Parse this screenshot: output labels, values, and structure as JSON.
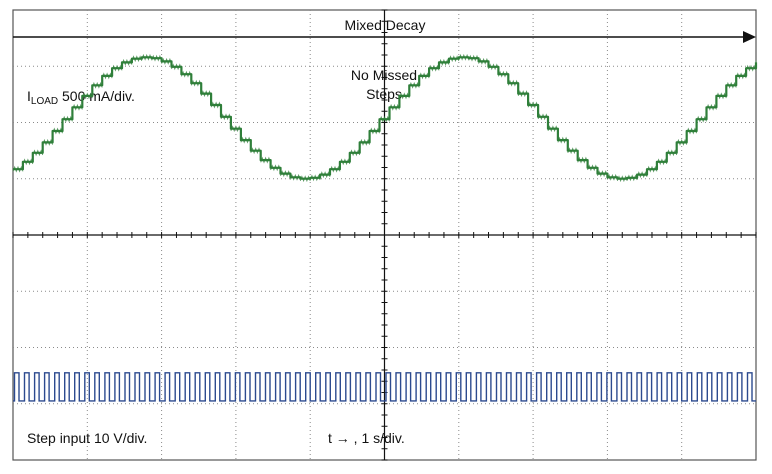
{
  "chart_data": {
    "type": "line",
    "title": "Mixed Decay",
    "annotation": "No Missed Steps",
    "annotation_lines": [
      "No Missed",
      "Steps"
    ],
    "grid": true,
    "grid_divisions": {
      "x": 10,
      "y": 8
    },
    "colors": {
      "current_trace": "#2f7f3a",
      "step_trace": "#2c4a8f",
      "grid": "#8a8a8a",
      "frame": "#555555",
      "arrow": "#111111"
    },
    "series": [
      {
        "key": "iload",
        "label_prefix": "I",
        "label_subscript": "LOAD",
        "label_suffix": " 500 mA/div.",
        "units": "div",
        "waveform": "stepped-sine",
        "cycles_shown": 2.33,
        "steps_per_cycle": 32,
        "center_div": 2.08,
        "amplitude_div": 1.08,
        "phase_rad": -1.1
      },
      {
        "key": "step",
        "label": "Step input 10 V/div.",
        "units": "div",
        "waveform": "pulse-train",
        "pulses_shown": 74,
        "high_div": -2.45,
        "low_div": -2.95
      }
    ],
    "xaxis_label": "t → , 1 s/div."
  }
}
